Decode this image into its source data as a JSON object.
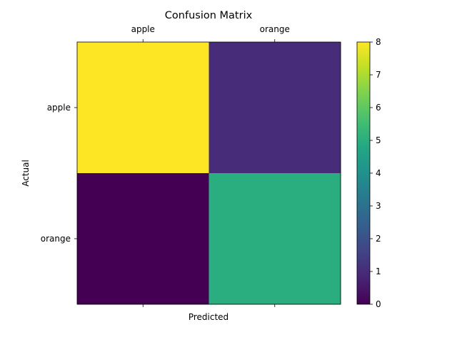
{
  "chart_data": {
    "type": "heatmap",
    "title": "Confusion Matrix",
    "xlabel": "Predicted",
    "ylabel": "Actual",
    "x_categories": [
      "apple",
      "orange"
    ],
    "y_categories": [
      "apple",
      "orange"
    ],
    "values": [
      [
        8,
        1
      ],
      [
        0,
        5
      ]
    ],
    "colormap": "viridis",
    "colorbar": {
      "min": 0,
      "max": 8,
      "ticks": [
        "0",
        "1",
        "2",
        "3",
        "4",
        "5",
        "6",
        "7",
        "8"
      ]
    },
    "x_tick_position": "top"
  }
}
